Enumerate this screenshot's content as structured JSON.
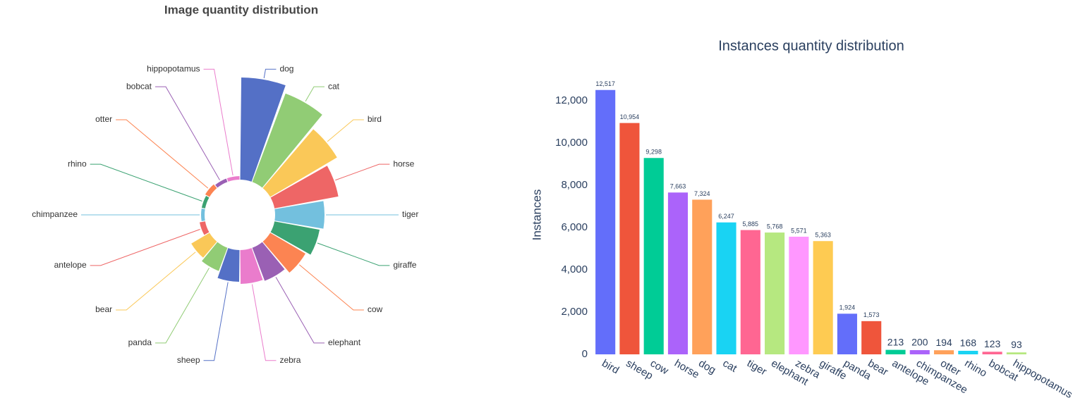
{
  "chart_data": [
    {
      "type": "rose",
      "title": "Image quantity distribution",
      "categories": [
        "dog",
        "cat",
        "bird",
        "horse",
        "tiger",
        "giraffe",
        "cow",
        "elephant",
        "zebra",
        "sheep",
        "panda",
        "bear",
        "antelope",
        "chimpanzee",
        "rhino",
        "otter",
        "bobcat",
        "hippopotamus"
      ],
      "values": [
        145,
        134,
        110,
        92,
        70,
        65,
        58,
        50,
        48,
        45,
        35,
        30,
        8,
        5,
        5,
        7,
        5,
        5
      ],
      "colors": [
        "#5470c6",
        "#91cc75",
        "#fac858",
        "#ee6666",
        "#73c0de",
        "#3ba272",
        "#fc8452",
        "#9a60b4",
        "#ea7ccc",
        "#5470c6",
        "#91cc75",
        "#fac858",
        "#ee6666",
        "#73c0de",
        "#3ba272",
        "#fc8452",
        "#9a60b4",
        "#ea7ccc"
      ]
    },
    {
      "type": "bar",
      "title": "Instances quantity distribution",
      "y_label": "Instances",
      "categories": [
        "bird",
        "sheep",
        "cow",
        "horse",
        "dog",
        "cat",
        "tiger",
        "elephant",
        "zebra",
        "giraffe",
        "panda",
        "bear",
        "antelope",
        "chimpanzee",
        "otter",
        "rhino",
        "bobcat",
        "hippopotamus"
      ],
      "values": [
        12517,
        10954,
        9298,
        7663,
        7324,
        6247,
        5885,
        5768,
        5571,
        5363,
        1924,
        1573,
        213,
        200,
        194,
        168,
        123,
        93
      ],
      "value_labels": [
        "12,517",
        "10,954",
        "9,298",
        "7,663",
        "7,324",
        "6,247",
        "5,885",
        "5,768",
        "5,571",
        "5,363",
        "1,924",
        "1,573",
        "213",
        "200",
        "194",
        "168",
        "123",
        "93"
      ],
      "colors": [
        "#636efa",
        "#EF553B",
        "#00cc96",
        "#ab63fa",
        "#FFA15A",
        "#19d3f3",
        "#FF6692",
        "#B6E880",
        "#FF97FF",
        "#FECB52",
        "#636efa",
        "#EF553B",
        "#00cc96",
        "#ab63fa",
        "#FFA15A",
        "#19d3f3",
        "#FF6692",
        "#B6E880"
      ],
      "ylim": [
        0,
        13176
      ],
      "yticks": [
        0,
        {
          "value": 2000,
          "label": "2,000"
        },
        {
          "value": 4000,
          "label": "4,000"
        },
        {
          "value": 6000,
          "label": "6,000"
        },
        {
          "value": 8000,
          "label": "8,000"
        },
        {
          "value": 10000,
          "label": "10,000"
        },
        {
          "value": 12000,
          "label": "12,000"
        }
      ]
    }
  ]
}
